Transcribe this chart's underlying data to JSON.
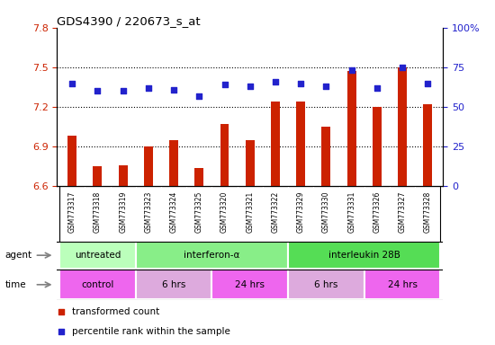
{
  "title": "GDS4390 / 220673_s_at",
  "samples": [
    "GSM773317",
    "GSM773318",
    "GSM773319",
    "GSM773323",
    "GSM773324",
    "GSM773325",
    "GSM773320",
    "GSM773321",
    "GSM773322",
    "GSM773329",
    "GSM773330",
    "GSM773331",
    "GSM773326",
    "GSM773327",
    "GSM773328"
  ],
  "transformed_count": [
    6.98,
    6.75,
    6.76,
    6.9,
    6.95,
    6.74,
    7.07,
    6.95,
    7.24,
    7.24,
    7.05,
    7.47,
    7.2,
    7.5,
    7.22
  ],
  "percentile_rank": [
    65,
    60,
    60,
    62,
    61,
    57,
    64,
    63,
    66,
    65,
    63,
    73,
    62,
    75,
    65
  ],
  "ylim_left": [
    6.6,
    7.8
  ],
  "ylim_right": [
    0,
    100
  ],
  "yticks_left": [
    6.6,
    6.9,
    7.2,
    7.5,
    7.8
  ],
  "yticks_right": [
    0,
    25,
    50,
    75,
    100
  ],
  "bar_color": "#cc2200",
  "dot_color": "#2222cc",
  "agent_groups": [
    {
      "label": "untreated",
      "start": 0,
      "end": 3,
      "color": "#bbffbb"
    },
    {
      "label": "interferon-α",
      "start": 3,
      "end": 9,
      "color": "#88ee88"
    },
    {
      "label": "interleukin 28B",
      "start": 9,
      "end": 15,
      "color": "#55dd55"
    }
  ],
  "time_groups": [
    {
      "label": "control",
      "start": 0,
      "end": 3,
      "color": "#ee66ee"
    },
    {
      "label": "6 hrs",
      "start": 3,
      "end": 6,
      "color": "#ddaadd"
    },
    {
      "label": "24 hrs",
      "start": 6,
      "end": 9,
      "color": "#ee66ee"
    },
    {
      "label": "6 hrs",
      "start": 9,
      "end": 12,
      "color": "#ddaadd"
    },
    {
      "label": "24 hrs",
      "start": 12,
      "end": 15,
      "color": "#ee66ee"
    }
  ],
  "legend_items": [
    {
      "color": "#cc2200",
      "label": "transformed count"
    },
    {
      "color": "#2222cc",
      "label": "percentile rank within the sample"
    }
  ],
  "tick_label_color_left": "#cc2200",
  "tick_label_color_right": "#2222cc",
  "bar_width": 0.35,
  "dot_size": 22,
  "xtick_bg": "#cccccc",
  "plot_bg": "#ffffff"
}
